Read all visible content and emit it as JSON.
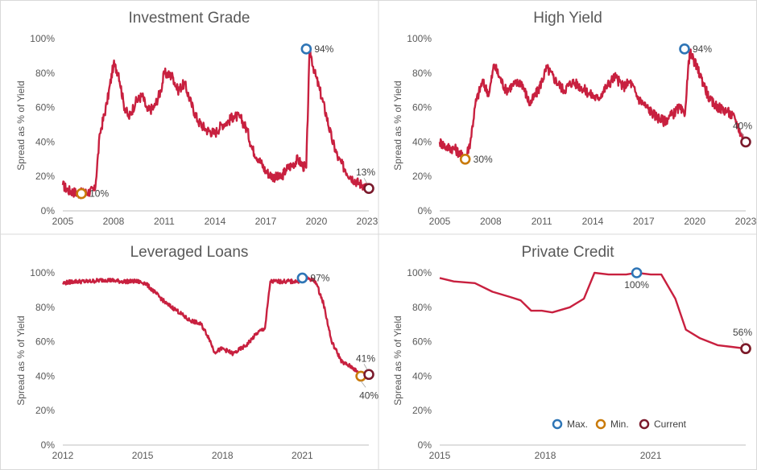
{
  "colors": {
    "series": "#c8203f",
    "max": "#2e75b6",
    "min": "#c97a0a",
    "current": "#7b1a2c",
    "grid_text": "#595959",
    "title": "#595959",
    "divider": "#d9d9d9"
  },
  "legend": [
    {
      "marker": "max",
      "label": "Max."
    },
    {
      "marker": "min",
      "label": "Min."
    },
    {
      "marker": "current",
      "label": "Current"
    }
  ],
  "chart_data": [
    {
      "type": "line",
      "title": "Investment Grade",
      "ylabel": "Spread  as % of Yield",
      "xlim": [
        2005,
        2023.1
      ],
      "ylim": [
        0,
        100
      ],
      "xticks": [
        "2005",
        "2008",
        "2011",
        "2014",
        "2017",
        "2020",
        "2023"
      ],
      "yticks": [
        "0%",
        "20%",
        "40%",
        "60%",
        "80%",
        "100%"
      ],
      "noise": 3,
      "x": [
        2005.0,
        2005.3,
        2006.0,
        2006.5,
        2006.9,
        2007.2,
        2007.6,
        2008.0,
        2008.3,
        2008.6,
        2008.9,
        2009.3,
        2009.7,
        2010.0,
        2010.4,
        2010.8,
        2011.0,
        2011.5,
        2011.8,
        2012.2,
        2012.6,
        2013.0,
        2013.5,
        2014.0,
        2014.4,
        2014.8,
        2015.1,
        2015.5,
        2015.9,
        2016.2,
        2016.6,
        2017.0,
        2017.4,
        2017.9,
        2018.2,
        2018.6,
        2018.9,
        2019.2,
        2019.4,
        2019.6,
        2019.9,
        2020.2,
        2020.6,
        2020.9,
        2021.3,
        2021.7,
        2022.0,
        2022.5,
        2022.8,
        2023.1
      ],
      "y": [
        15,
        12,
        10,
        11,
        12,
        45,
        62,
        85,
        80,
        62,
        54,
        63,
        67,
        58,
        60,
        70,
        80,
        78,
        70,
        74,
        62,
        52,
        47,
        45,
        50,
        52,
        55,
        54,
        47,
        36,
        30,
        23,
        20,
        19,
        24,
        27,
        30,
        26,
        25,
        94,
        80,
        70,
        55,
        42,
        30,
        24,
        20,
        16,
        15,
        13
      ],
      "markers": [
        {
          "kind": "min",
          "x": 2006.1,
          "y": 10,
          "label": "10%",
          "anchor": "right"
        },
        {
          "kind": "max",
          "x": 2019.4,
          "y": 94,
          "label": "94%",
          "anchor": "right"
        },
        {
          "kind": "current",
          "x": 2023.1,
          "y": 13,
          "label": "13%",
          "anchor": "above"
        }
      ]
    },
    {
      "type": "line",
      "title": "High Yield",
      "ylabel": "Spread  as % of Yield",
      "xlim": [
        2005,
        2023.0
      ],
      "ylim": [
        0,
        100
      ],
      "xticks": [
        "2005",
        "2008",
        "2011",
        "2014",
        "2017",
        "2020",
        "2023"
      ],
      "yticks": [
        "0%",
        "20%",
        "40%",
        "60%",
        "80%",
        "100%"
      ],
      "noise": 3,
      "x": [
        2005.0,
        2005.4,
        2005.9,
        2006.2,
        2006.5,
        2006.8,
        2007.1,
        2007.5,
        2007.9,
        2008.2,
        2008.5,
        2008.9,
        2009.3,
        2009.8,
        2010.3,
        2010.8,
        2011.3,
        2011.8,
        2012.3,
        2012.8,
        2013.3,
        2013.8,
        2014.3,
        2014.8,
        2015.3,
        2015.8,
        2016.2,
        2016.7,
        2017.2,
        2017.7,
        2018.2,
        2018.7,
        2019.1,
        2019.4,
        2019.7,
        2020.0,
        2020.4,
        2020.9,
        2021.4,
        2021.9,
        2022.4,
        2022.7,
        2023.0
      ],
      "y": [
        40,
        37,
        36,
        33,
        30,
        40,
        62,
        75,
        68,
        85,
        78,
        70,
        73,
        75,
        62,
        70,
        83,
        76,
        70,
        75,
        72,
        68,
        65,
        72,
        78,
        72,
        75,
        65,
        60,
        55,
        52,
        56,
        60,
        55,
        92,
        86,
        77,
        64,
        60,
        58,
        53,
        45,
        40
      ],
      "markers": [
        {
          "kind": "min",
          "x": 2006.5,
          "y": 30,
          "label": "30%",
          "anchor": "right"
        },
        {
          "kind": "max",
          "x": 2019.4,
          "y": 94,
          "label": "94%",
          "anchor": "right"
        },
        {
          "kind": "current",
          "x": 2023.0,
          "y": 40,
          "label": "40%",
          "anchor": "above"
        }
      ]
    },
    {
      "type": "line",
      "title": "Leveraged Loans",
      "ylabel": "Spread  as % of Yield",
      "xlim": [
        2012,
        2023.5
      ],
      "ylim": [
        0,
        100
      ],
      "xticks": [
        "2012",
        "2015",
        "2018",
        "2021"
      ],
      "yticks": [
        "0%",
        "20%",
        "40%",
        "60%",
        "80%",
        "100%"
      ],
      "noise": 1.2,
      "x": [
        2012.0,
        2012.4,
        2013.0,
        2013.6,
        2014.2,
        2014.8,
        2015.1,
        2015.5,
        2015.9,
        2016.3,
        2016.7,
        2017.2,
        2017.5,
        2017.7,
        2018.0,
        2018.4,
        2018.9,
        2019.3,
        2019.6,
        2019.8,
        2020.3,
        2020.8,
        2021.2,
        2021.5,
        2021.8,
        2022.1,
        2022.5,
        2022.9,
        2023.2,
        2023.5
      ],
      "y": [
        94,
        95,
        95,
        96,
        95,
        95,
        94,
        88,
        82,
        78,
        73,
        70,
        62,
        54,
        56,
        53,
        58,
        65,
        68,
        95,
        95,
        95,
        97,
        95,
        82,
        60,
        48,
        45,
        40,
        41
      ],
      "markers": [
        {
          "kind": "max",
          "x": 2021.0,
          "y": 97,
          "label": "97%",
          "anchor": "right"
        },
        {
          "kind": "min",
          "x": 2023.2,
          "y": 40,
          "label": "40%",
          "anchor": "below"
        },
        {
          "kind": "current",
          "x": 2023.5,
          "y": 41,
          "label": "41%",
          "anchor": "above"
        }
      ]
    },
    {
      "type": "line",
      "title": "Private Credit",
      "ylabel": "Spread  as % of Yield",
      "xlim": [
        2015,
        2023.7
      ],
      "ylim": [
        0,
        100
      ],
      "xticks": [
        "2015",
        "2018",
        "2021"
      ],
      "yticks": [
        "0%",
        "20%",
        "40%",
        "60%",
        "80%",
        "100%"
      ],
      "noise": 0,
      "x": [
        2015.0,
        2015.4,
        2016.0,
        2016.5,
        2017.0,
        2017.3,
        2017.6,
        2017.9,
        2018.2,
        2018.7,
        2019.1,
        2019.4,
        2019.8,
        2020.3,
        2020.6,
        2021.0,
        2021.3,
        2021.7,
        2022.0,
        2022.4,
        2022.9,
        2023.3,
        2023.7
      ],
      "y": [
        97,
        95,
        94,
        89,
        86,
        84,
        78,
        78,
        77,
        80,
        85,
        100,
        99,
        99,
        100,
        99,
        99,
        85,
        67,
        62,
        58,
        57,
        56
      ],
      "markers": [
        {
          "kind": "max",
          "x": 2020.6,
          "y": 100,
          "label": "100%",
          "anchor": "below"
        },
        {
          "kind": "min",
          "x": 2023.7,
          "y": 56,
          "label": "",
          "anchor": "none"
        },
        {
          "kind": "current",
          "x": 2023.7,
          "y": 56,
          "label": "56%",
          "anchor": "above"
        }
      ]
    }
  ]
}
